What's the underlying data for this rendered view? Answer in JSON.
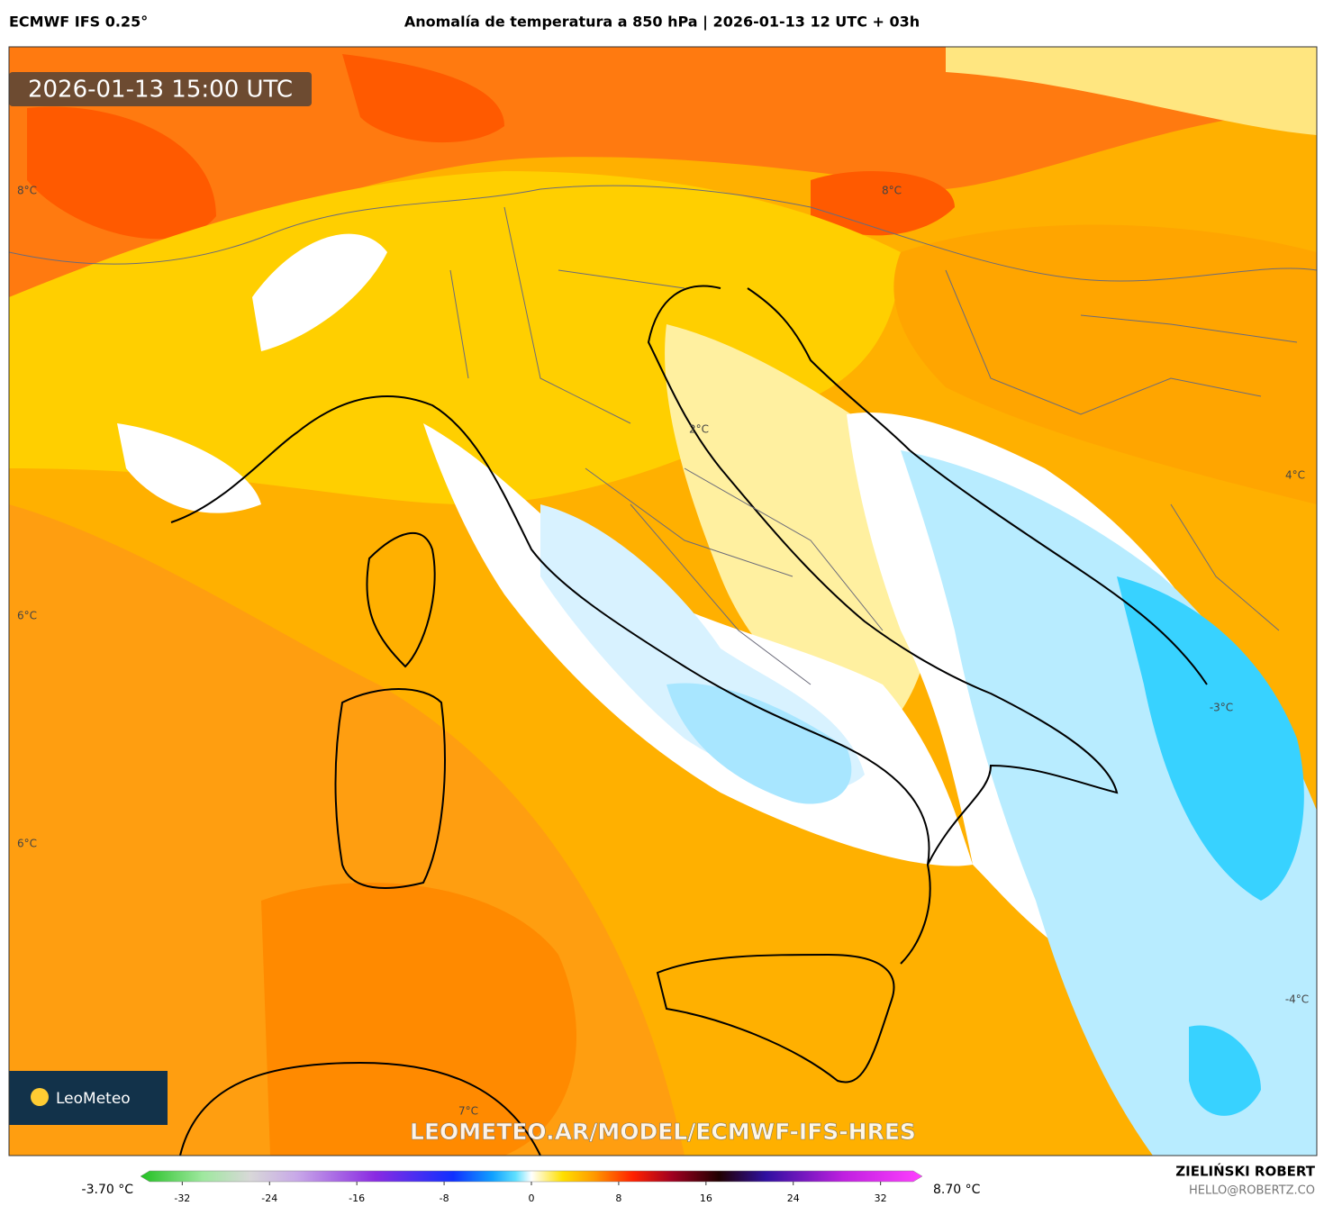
{
  "header": {
    "model": "ECMWF IFS 0.25°",
    "title": "Anomalía de temperatura a 850 hPa | 2026-01-13 12 UTC + 03h"
  },
  "map": {
    "timestamp": "2026-01-13 15:00 UTC",
    "watermark": "LEOMETEO.AR/MODEL/ECMWF-IFS-HRES",
    "logo": "LeoMeteo",
    "contour_labels": [
      "8°C",
      "8°C",
      "6°C",
      "6°C",
      "2°C",
      "4°C",
      "-3°C",
      "-4°C",
      "7°C"
    ]
  },
  "colorbar": {
    "min_label": "-3.70 °C",
    "max_label": "8.70 °C",
    "range": [
      -35,
      35
    ],
    "ticks": [
      -32,
      -24,
      -16,
      -8,
      0,
      8,
      16,
      24,
      32
    ]
  },
  "credits": {
    "author": "ZIELIŃSKI ROBERT",
    "email": "HELLO@ROBERTZ.CO"
  }
}
